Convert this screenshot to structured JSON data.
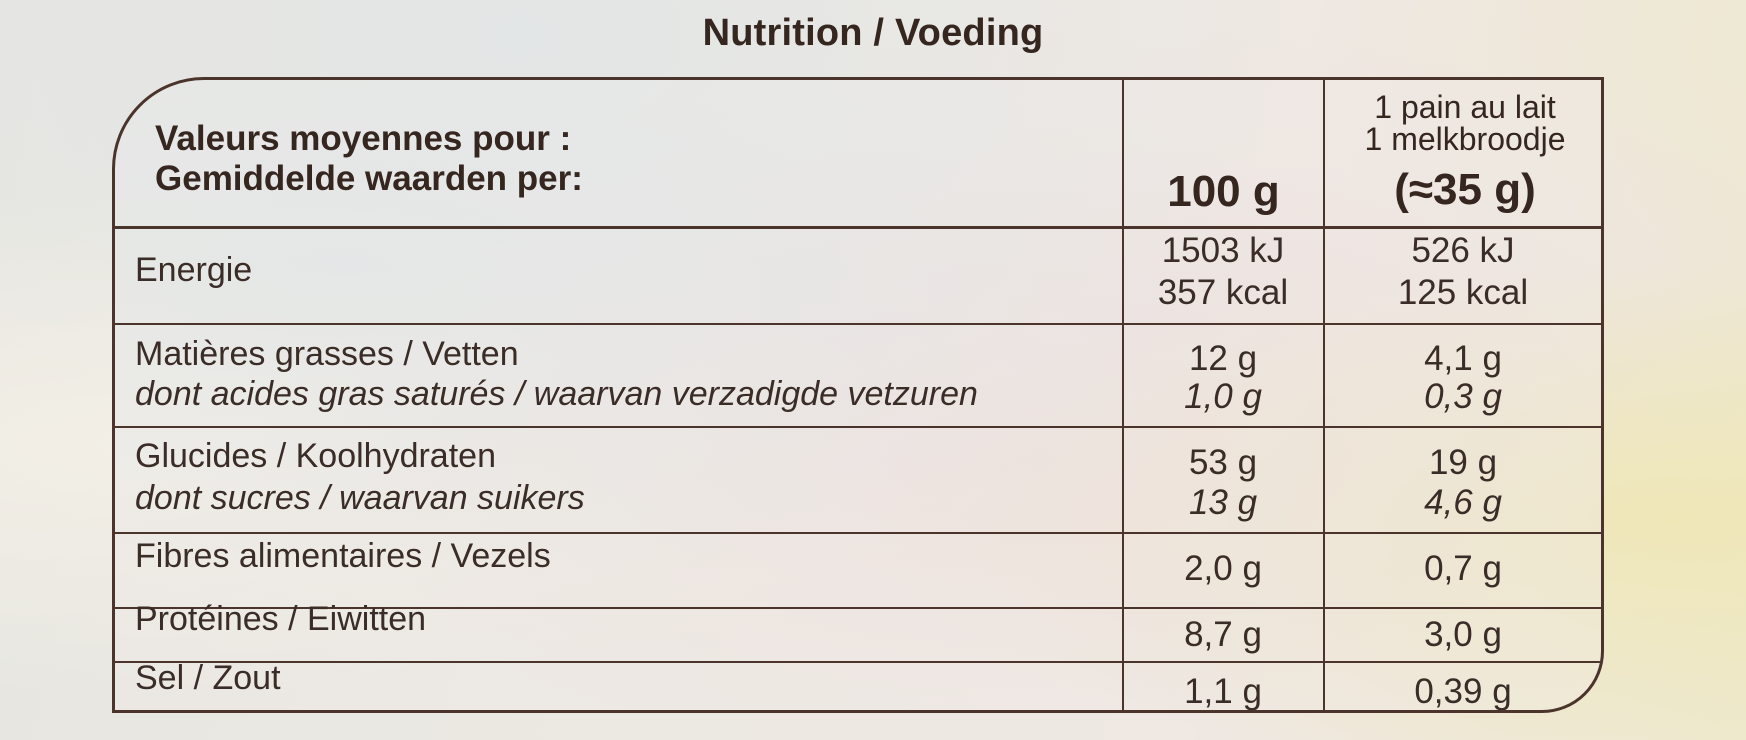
{
  "title": "Nutrition / Voeding",
  "header": {
    "label_fr": "Valeurs moyennes pour :",
    "label_nl": "Gemiddelde waarden per:",
    "col1": "100 g",
    "col2_line1": "1 pain au lait",
    "col2_line2": "1 melkbroodje",
    "col2_line3": "(≈35 g)"
  },
  "rows": [
    {
      "label": "Energie",
      "col1": [
        "1503 kJ",
        "357 kcal"
      ],
      "col2": [
        "526 kJ",
        "125 kcal"
      ]
    },
    {
      "label": "Matières grasses / Vetten",
      "sublabel": "dont acides gras saturés / waarvan verzadigde vetzuren",
      "col1": [
        "12 g",
        "1,0 g"
      ],
      "col2": [
        "4,1 g",
        "0,3 g"
      ]
    },
    {
      "label": "Glucides / Koolhydraten",
      "sublabel": "dont sucres / waarvan suikers",
      "col1": [
        "53 g",
        "13 g"
      ],
      "col2": [
        "19 g",
        "4,6 g"
      ]
    },
    {
      "label": "Fibres alimentaires / Vezels",
      "col1": [
        "2,0 g"
      ],
      "col2": [
        "0,7 g"
      ]
    },
    {
      "label": "Protéines / Eiwitten",
      "col1": [
        "8,7 g"
      ],
      "col2": [
        "3,0 g"
      ]
    },
    {
      "label": "Sel / Zout",
      "col1": [
        "1,1 g"
      ],
      "col2": [
        "0,39 g"
      ]
    }
  ],
  "colors": {
    "ink": "#3a2c26",
    "rule": "#4a342b"
  }
}
